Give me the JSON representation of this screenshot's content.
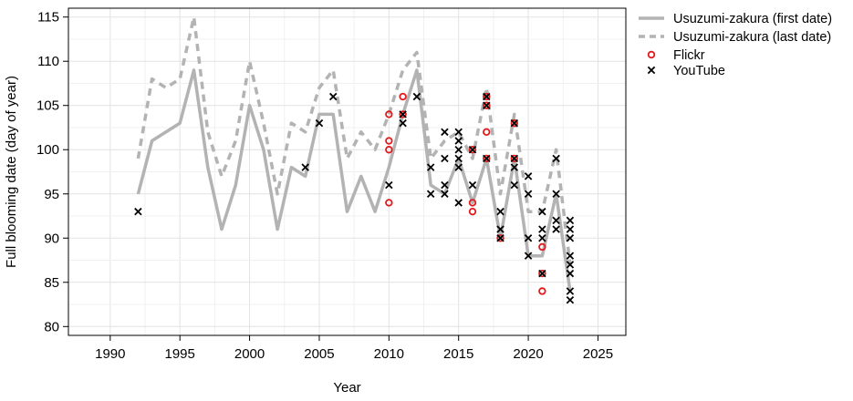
{
  "chart_data": {
    "type": "line",
    "xlabel": "Year",
    "ylabel": "Full blooming date (day of year)",
    "xlim": [
      1987,
      2027
    ],
    "ylim": [
      79,
      116
    ],
    "x_ticks": [
      1990,
      1995,
      2000,
      2005,
      2010,
      2015,
      2020,
      2025
    ],
    "y_ticks": [
      80,
      85,
      90,
      95,
      100,
      105,
      110,
      115
    ],
    "grid": true,
    "legend_position": "outside-right",
    "colors": {
      "first_date": "#b3b3b3",
      "last_date": "#b3b3b3",
      "flickr": "#e31a1c",
      "youtube": "#000000"
    },
    "series": [
      {
        "name": "Usuzumi-zakura (first date)",
        "style": "solid",
        "x": [
          1992,
          1993,
          1995,
          1996,
          1997,
          1998,
          1999,
          2000,
          2001,
          2002,
          2003,
          2004,
          2005,
          2006,
          2007,
          2008,
          2009,
          2010,
          2011,
          2012,
          2013,
          2014,
          2015,
          2016,
          2017,
          2018,
          2019,
          2020,
          2021,
          2022,
          2023
        ],
        "y": [
          95,
          101,
          103,
          109,
          98,
          91,
          96,
          105,
          100,
          91,
          98,
          97,
          104,
          104,
          93,
          97,
          93,
          98,
          104,
          109,
          96,
          95,
          99,
          94,
          99,
          90,
          99,
          88,
          88,
          95,
          84
        ]
      },
      {
        "name": "Usuzumi-zakura (last date)",
        "style": "dashed",
        "x": [
          1992,
          1993,
          1994,
          1995,
          1996,
          1997,
          1998,
          1999,
          2000,
          2001,
          2002,
          2003,
          2004,
          2005,
          2006,
          2007,
          2008,
          2009,
          2010,
          2011,
          2012,
          2013,
          2014,
          2015,
          2016,
          2017,
          2018,
          2019,
          2020,
          2021,
          2022,
          2023
        ],
        "y": [
          99,
          108,
          107,
          108,
          115,
          102,
          97,
          101,
          110,
          103,
          95,
          103,
          102,
          107,
          109,
          99,
          102,
          100,
          104,
          109,
          111,
          99,
          101,
          102,
          99,
          107,
          95,
          104,
          93,
          93,
          100,
          87
        ]
      },
      {
        "name": "Flickr",
        "style": "circle",
        "x": [
          2010,
          2010,
          2010,
          2010,
          2011,
          2011,
          2016,
          2016,
          2016,
          2017,
          2017,
          2017,
          2017,
          2018,
          2019,
          2019,
          2021,
          2021,
          2021
        ],
        "y": [
          104,
          101,
          100,
          94,
          106,
          104,
          100,
          94,
          93,
          106,
          105,
          102,
          99,
          90,
          103,
          99,
          89,
          86,
          84
        ]
      },
      {
        "name": "YouTube",
        "style": "cross",
        "x": [
          1992,
          2004,
          2005,
          2006,
          2010,
          2011,
          2011,
          2012,
          2013,
          2013,
          2014,
          2014,
          2014,
          2014,
          2015,
          2015,
          2015,
          2015,
          2015,
          2015,
          2016,
          2016,
          2017,
          2017,
          2017,
          2018,
          2018,
          2018,
          2019,
          2019,
          2019,
          2019,
          2020,
          2020,
          2020,
          2020,
          2021,
          2021,
          2021,
          2021,
          2022,
          2022,
          2022,
          2022,
          2023,
          2023,
          2023,
          2023,
          2023,
          2023,
          2023,
          2023
        ],
        "y": [
          93,
          98,
          103,
          106,
          96,
          104,
          103,
          106,
          98,
          95,
          102,
          99,
          96,
          95,
          102,
          101,
          100,
          99,
          98,
          94,
          100,
          96,
          106,
          105,
          99,
          93,
          91,
          90,
          103,
          99,
          98,
          96,
          97,
          95,
          90,
          88,
          93,
          91,
          90,
          86,
          99,
          95,
          92,
          91,
          92,
          91,
          90,
          88,
          87,
          86,
          84,
          83
        ]
      }
    ]
  }
}
